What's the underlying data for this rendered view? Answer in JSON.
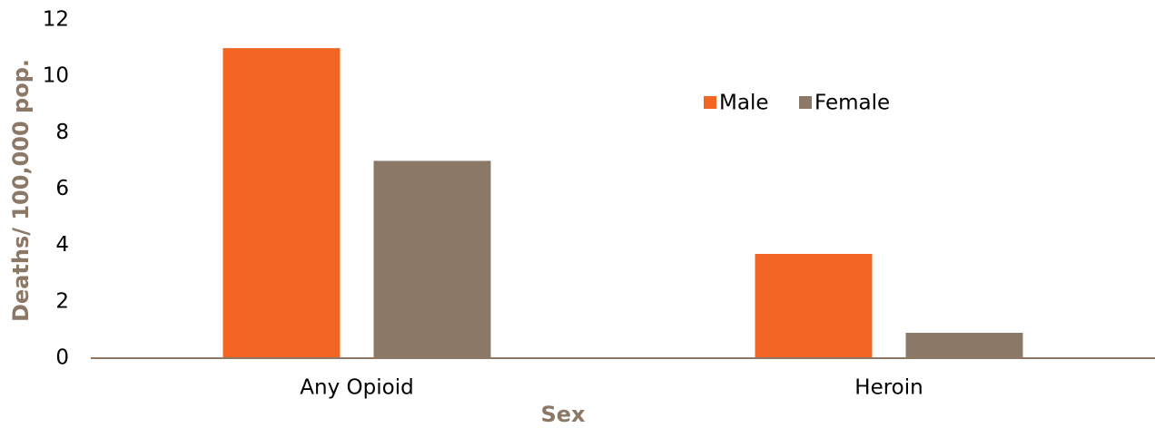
{
  "chart_data": {
    "type": "bar",
    "categories": [
      "Any Opioid",
      "Heroin"
    ],
    "series": [
      {
        "name": "Male",
        "color": "#f26522",
        "values": [
          11.0,
          3.7
        ]
      },
      {
        "name": "Female",
        "color": "#8b7866",
        "values": [
          7.0,
          0.9
        ]
      }
    ],
    "x_label": "Sex",
    "y_label": "Deaths/ 100,000 pop.",
    "ylim": [
      0,
      12
    ],
    "yticks": [
      0,
      2,
      4,
      6,
      8,
      10,
      12
    ],
    "grid": false,
    "legend": "top-right"
  }
}
